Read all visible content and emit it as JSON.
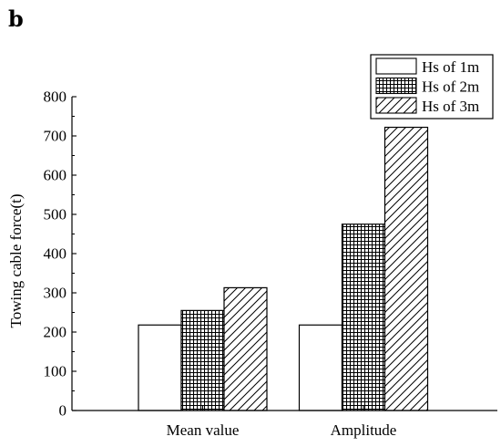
{
  "panel_label": "b",
  "chart_data": {
    "type": "bar",
    "title": "",
    "xlabel": "",
    "ylabel": "Towing cable force(t)",
    "categories": [
      "Mean value",
      "Amplitude"
    ],
    "series": [
      {
        "name": "Hs of 1m",
        "values": [
          218,
          218
        ],
        "pattern": "empty"
      },
      {
        "name": "Hs of 2m",
        "values": [
          255,
          475
        ],
        "pattern": "crosshatch"
      },
      {
        "name": "Hs of 3m",
        "values": [
          313,
          722
        ],
        "pattern": "diagonal"
      }
    ],
    "ylim": [
      0,
      800
    ],
    "yticks": [
      0,
      100,
      200,
      300,
      400,
      500,
      600,
      700,
      800
    ],
    "grid": false,
    "legend_position": "top-right"
  }
}
